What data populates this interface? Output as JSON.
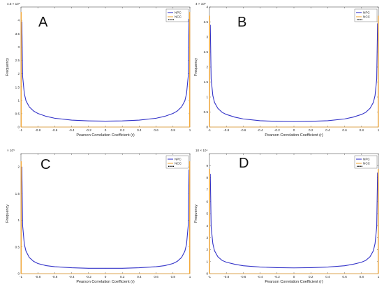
{
  "colors": {
    "npc": "#3232c8",
    "ncc": "#f3a93b",
    "frame": "#333333"
  },
  "chart_data": [
    {
      "panel": "A",
      "type": "line",
      "xlabel": "Pearson Correlation Coefficient (r)",
      "ylabel": "Frequency",
      "y_scale_label": "4.5 × 10⁵",
      "xlim": [
        -1,
        1
      ],
      "ylim": [
        0,
        4.5
      ],
      "xticks": [
        -1,
        -0.8,
        -0.6,
        -0.4,
        -0.2,
        0,
        0.2,
        0.4,
        0.6,
        0.8,
        1
      ],
      "xtick_labels": [
        "-1",
        "-0.8",
        "-0.6",
        "-0.4",
        "-0.2",
        "0",
        "0.2",
        "0.4",
        "0.6",
        "0.8",
        "1"
      ],
      "yticks": [
        0,
        0.5,
        1,
        1.5,
        2,
        2.5,
        3,
        3.5,
        4
      ],
      "ytick_labels": [
        "0",
        "0.5",
        "1",
        "1.5",
        "2",
        "2.5",
        "3",
        "3.5",
        "4"
      ],
      "legend": [
        "NPC",
        "NCC"
      ],
      "legend_position": "top-right",
      "grid": false,
      "series": [
        {
          "name": "NPC",
          "x": [
            -0.99,
            -0.98,
            -0.96,
            -0.94,
            -0.9,
            -0.85,
            -0.8,
            -0.7,
            -0.6,
            -0.4,
            -0.2,
            0,
            0.2,
            0.4,
            0.6,
            0.7,
            0.8,
            0.85,
            0.9,
            0.94,
            0.96,
            0.98,
            0.99
          ],
          "y": [
            3.95,
            1.9,
            1.25,
            0.98,
            0.75,
            0.6,
            0.51,
            0.4,
            0.33,
            0.26,
            0.23,
            0.22,
            0.23,
            0.26,
            0.33,
            0.4,
            0.51,
            0.6,
            0.75,
            0.98,
            1.25,
            1.9,
            4.05
          ]
        },
        {
          "name": "NCC",
          "x": [
            -1,
            -1,
            -0.995,
            -0.995,
            0.995,
            0.995,
            1,
            1
          ],
          "y": [
            0,
            4.3,
            4.3,
            0,
            0,
            4.3,
            4.3,
            0
          ]
        }
      ]
    },
    {
      "panel": "B",
      "type": "line",
      "xlabel": "Pearson Correlation Coefficient (r)",
      "ylabel": "Frequency",
      "y_scale_label": "4 × 10⁵",
      "xlim": [
        -1,
        1
      ],
      "ylim": [
        0,
        4
      ],
      "xticks": [
        -1,
        -0.8,
        -0.6,
        -0.4,
        -0.2,
        0,
        0.2,
        0.4,
        0.6,
        0.8,
        1
      ],
      "xtick_labels": [
        "-1",
        "-0.8",
        "-0.6",
        "-0.4",
        "-0.2",
        "0",
        "0.2",
        "0.4",
        "0.6",
        "0.8",
        "1"
      ],
      "yticks": [
        0,
        0.5,
        1,
        1.5,
        2,
        2.5,
        3,
        3.5,
        4
      ],
      "ytick_labels": [
        "0",
        "0.5",
        "1",
        "1.5",
        "2",
        "2.5",
        "3",
        "3.5",
        "4"
      ],
      "legend": [
        "NPC",
        "NCC"
      ],
      "legend_position": "top-right",
      "grid": false,
      "series": [
        {
          "name": "NPC",
          "x": [
            -0.99,
            -0.98,
            -0.96,
            -0.94,
            -0.9,
            -0.85,
            -0.8,
            -0.7,
            -0.6,
            -0.4,
            -0.2,
            0,
            0.2,
            0.4,
            0.6,
            0.7,
            0.8,
            0.85,
            0.9,
            0.94,
            0.96,
            0.98,
            0.99
          ],
          "y": [
            3.4,
            1.6,
            1.05,
            0.82,
            0.62,
            0.49,
            0.42,
            0.33,
            0.27,
            0.21,
            0.19,
            0.18,
            0.19,
            0.21,
            0.27,
            0.33,
            0.42,
            0.49,
            0.62,
            0.82,
            1.05,
            1.6,
            3.45
          ]
        },
        {
          "name": "NCC",
          "x": [
            -1,
            -1,
            -0.995,
            -0.995,
            0.995,
            0.995,
            1,
            1
          ],
          "y": [
            0,
            3.7,
            3.7,
            0,
            0,
            3.7,
            3.7,
            0
          ]
        }
      ]
    },
    {
      "panel": "C",
      "type": "line",
      "xlabel": "Pearson Correlation Coefficient (r)",
      "ylabel": "Frequency",
      "y_scale_label": "× 10⁵",
      "xlim": [
        -1,
        1
      ],
      "ylim": [
        0,
        2.25
      ],
      "xticks": [
        -1,
        -0.8,
        -0.6,
        -0.4,
        -0.2,
        0,
        0.2,
        0.4,
        0.6,
        0.8,
        1
      ],
      "xtick_labels": [
        "-1",
        "-0.8",
        "-0.6",
        "-0.4",
        "-0.2",
        "0",
        "0.2",
        "0.4",
        "0.6",
        "0.8",
        "1"
      ],
      "yticks": [
        0,
        0.5,
        1,
        1.5,
        2
      ],
      "ytick_labels": [
        "0",
        "0.5",
        "1",
        "1.5",
        "2"
      ],
      "legend": [
        "NPC",
        "NCC"
      ],
      "legend_position": "top-right",
      "grid": false,
      "series": [
        {
          "name": "NPC",
          "x": [
            -0.99,
            -0.98,
            -0.96,
            -0.94,
            -0.9,
            -0.85,
            -0.8,
            -0.7,
            -0.6,
            -0.4,
            -0.2,
            0,
            0.2,
            0.4,
            0.6,
            0.7,
            0.8,
            0.85,
            0.9,
            0.94,
            0.96,
            0.98,
            0.99
          ],
          "y": [
            2.0,
            0.9,
            0.55,
            0.42,
            0.3,
            0.23,
            0.19,
            0.15,
            0.13,
            0.11,
            0.1,
            0.1,
            0.1,
            0.11,
            0.13,
            0.15,
            0.19,
            0.23,
            0.3,
            0.42,
            0.55,
            0.9,
            1.95
          ]
        },
        {
          "name": "NCC",
          "x": [
            -1,
            -1,
            -0.995,
            -0.995,
            0.995,
            0.995,
            1,
            1
          ],
          "y": [
            0,
            2.1,
            2.1,
            0,
            0,
            2.1,
            2.1,
            0
          ]
        }
      ]
    },
    {
      "panel": "D",
      "type": "line",
      "xlabel": "Pearson Correlation Coefficient (r)",
      "ylabel": "Frequency",
      "y_scale_label": "10 × 10⁴",
      "xlim": [
        -1,
        1
      ],
      "ylim": [
        0,
        10
      ],
      "xticks": [
        -1,
        -0.8,
        -0.6,
        -0.4,
        -0.2,
        0,
        0.2,
        0.4,
        0.6,
        0.8,
        1
      ],
      "xtick_labels": [
        "-1",
        "-0.8",
        "-0.6",
        "-0.4",
        "-0.2",
        "0",
        "0.2",
        "0.4",
        "0.6",
        "0.8",
        "1"
      ],
      "yticks": [
        0,
        1,
        2,
        3,
        4,
        5,
        6,
        7,
        8,
        9
      ],
      "ytick_labels": [
        "0",
        "1",
        "2",
        "3",
        "4",
        "5",
        "6",
        "7",
        "8",
        "9"
      ],
      "legend": [
        "NPC",
        "NCC"
      ],
      "legend_position": "top-right",
      "grid": false,
      "series": [
        {
          "name": "NPC",
          "x": [
            -0.99,
            -0.98,
            -0.96,
            -0.94,
            -0.9,
            -0.85,
            -0.8,
            -0.7,
            -0.6,
            -0.4,
            -0.2,
            0,
            0.2,
            0.4,
            0.6,
            0.7,
            0.8,
            0.85,
            0.9,
            0.94,
            0.96,
            0.98,
            0.99
          ],
          "y": [
            8.3,
            3.9,
            2.5,
            1.9,
            1.4,
            1.1,
            0.95,
            0.78,
            0.66,
            0.55,
            0.5,
            0.48,
            0.5,
            0.55,
            0.66,
            0.78,
            0.95,
            1.1,
            1.4,
            1.9,
            2.5,
            3.9,
            8.4
          ]
        },
        {
          "name": "NCC",
          "x": [
            -1,
            -1,
            -0.995,
            -0.995,
            0.995,
            0.995,
            1,
            1
          ],
          "y": [
            0,
            8.7,
            8.7,
            0,
            0,
            8.7,
            8.7,
            0
          ]
        }
      ]
    }
  ]
}
